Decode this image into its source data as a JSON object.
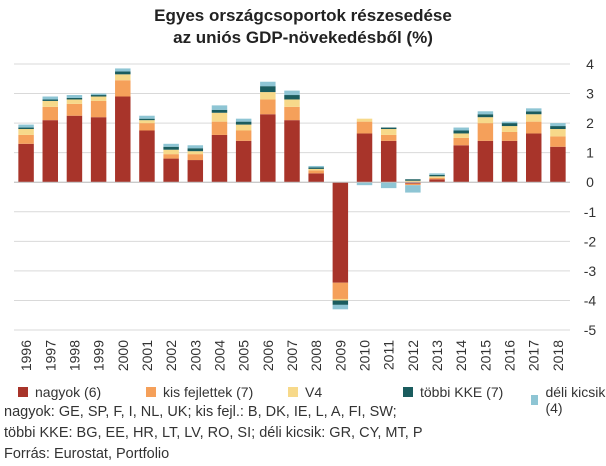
{
  "title_line1": "Egyes országcsoportok részesedése",
  "title_line2": "az uniós GDP-növekedésből (%)",
  "chart_data": {
    "type": "bar",
    "stacked": true,
    "categories": [
      "1996",
      "1997",
      "1998",
      "1999",
      "2000",
      "2001",
      "2002",
      "2003",
      "2004",
      "2005",
      "2006",
      "2007",
      "2008",
      "2009",
      "2010",
      "2011",
      "2012",
      "2013",
      "2014",
      "2015",
      "2016",
      "2017",
      "2018"
    ],
    "series": [
      {
        "name": "nagyok (6)",
        "color": "#a8342a",
        "values": [
          1.3,
          2.1,
          2.25,
          2.2,
          2.9,
          1.75,
          0.8,
          0.75,
          1.6,
          1.4,
          2.3,
          2.1,
          0.3,
          -3.4,
          1.65,
          1.4,
          -0.05,
          0.1,
          1.25,
          1.4,
          1.4,
          1.65,
          1.2
        ]
      },
      {
        "name": "kis fejlettek (7)",
        "color": "#f5a05a",
        "values": [
          0.3,
          0.45,
          0.4,
          0.55,
          0.55,
          0.25,
          0.15,
          0.2,
          0.45,
          0.35,
          0.5,
          0.45,
          0.1,
          -0.55,
          0.4,
          0.2,
          -0.05,
          0.05,
          0.25,
          0.6,
          0.3,
          0.4,
          0.35
        ]
      },
      {
        "name": "V4",
        "color": "#f7d98a",
        "values": [
          0.2,
          0.2,
          0.15,
          0.15,
          0.2,
          0.1,
          0.15,
          0.1,
          0.3,
          0.2,
          0.25,
          0.25,
          0.05,
          -0.05,
          0.1,
          0.2,
          0.05,
          0.05,
          0.15,
          0.2,
          0.2,
          0.25,
          0.25
        ]
      },
      {
        "name": "többi KKE (7)",
        "color": "#1a5c5e",
        "values": [
          0.05,
          0.05,
          0.05,
          0.05,
          0.1,
          0.05,
          0.1,
          0.1,
          0.1,
          0.1,
          0.2,
          0.15,
          0.05,
          -0.15,
          0.0,
          0.05,
          0.05,
          0.05,
          0.1,
          0.1,
          0.1,
          0.1,
          0.1
        ]
      },
      {
        "name": "déli kicsik (4)",
        "color": "#8ec5d4",
        "values": [
          0.1,
          0.1,
          0.1,
          0.05,
          0.1,
          0.1,
          0.1,
          0.1,
          0.15,
          0.1,
          0.15,
          0.15,
          0.05,
          -0.15,
          -0.1,
          -0.2,
          -0.25,
          0.05,
          0.1,
          0.1,
          0.05,
          0.1,
          0.1
        ]
      }
    ],
    "ylim": [
      -5,
      4
    ],
    "yticks": [
      -5,
      -4,
      -3,
      -2,
      -1,
      0,
      1,
      2,
      3,
      4
    ],
    "grid": true,
    "legend": "bottom"
  },
  "notes": {
    "line1": "nagyok: GE, SP, F, I, NL, UK;  kis fejl.: B, DK, IE, L, A, FI, SW;",
    "line2": "többi KKE: BG, EE, HR, LT, LV, RO, SI; déli kicsik: GR, CY, MT, P",
    "line3": "Forrás: Eurostat, Portfolio"
  }
}
